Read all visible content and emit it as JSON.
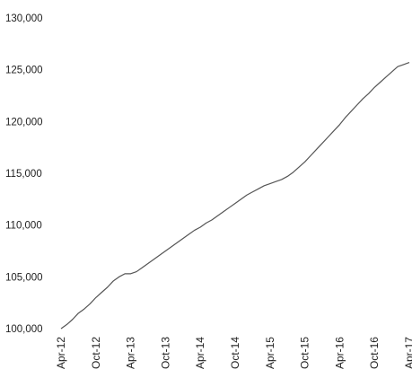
{
  "chart_data": {
    "type": "line",
    "title": "",
    "xlabel": "",
    "ylabel": "",
    "ylim": [
      100000,
      130000
    ],
    "yticks": [
      100000,
      105000,
      110000,
      115000,
      120000,
      125000,
      130000
    ],
    "ytick_labels": [
      "100,000",
      "105,000",
      "110,000",
      "115,000",
      "120,000",
      "125,000",
      "130,000"
    ],
    "xtick_labels": [
      "Apr-12",
      "Oct-12",
      "Apr-13",
      "Oct-13",
      "Apr-14",
      "Oct-14",
      "Apr-15",
      "Oct-15",
      "Apr-16",
      "Oct-16",
      "Apr-17"
    ],
    "grid": false,
    "legend": "none",
    "line_color": "#555555",
    "series": [
      {
        "x": [
          "Apr-12",
          "May-12",
          "Jun-12",
          "Jul-12",
          "Aug-12",
          "Sep-12",
          "Oct-12",
          "Nov-12",
          "Dec-12",
          "Jan-13",
          "Feb-13",
          "Mar-13",
          "Apr-13",
          "May-13",
          "Jun-13",
          "Jul-13",
          "Aug-13",
          "Sep-13",
          "Oct-13",
          "Nov-13",
          "Dec-13",
          "Jan-14",
          "Feb-14",
          "Mar-14",
          "Apr-14",
          "May-14",
          "Jun-14",
          "Jul-14",
          "Aug-14",
          "Sep-14",
          "Oct-14",
          "Nov-14",
          "Dec-14",
          "Jan-15",
          "Feb-15",
          "Mar-15",
          "Apr-15",
          "May-15",
          "Jun-15",
          "Jul-15",
          "Aug-15",
          "Sep-15",
          "Oct-15",
          "Nov-15",
          "Dec-15",
          "Jan-16",
          "Feb-16",
          "Mar-16",
          "Apr-16",
          "May-16",
          "Jun-16",
          "Jul-16",
          "Aug-16",
          "Sep-16",
          "Oct-16",
          "Nov-16",
          "Dec-16",
          "Jan-17",
          "Feb-17",
          "Mar-17",
          "Apr-17"
        ],
        "values": [
          100000,
          100400,
          100900,
          101500,
          101900,
          102400,
          103000,
          103500,
          104000,
          104600,
          105000,
          105300,
          105300,
          105500,
          105900,
          106300,
          106700,
          107100,
          107500,
          107900,
          108300,
          108700,
          109100,
          109500,
          109800,
          110200,
          110500,
          110900,
          111300,
          111700,
          112100,
          112500,
          112900,
          113200,
          113500,
          113800,
          114000,
          114200,
          114400,
          114700,
          115100,
          115600,
          116100,
          116700,
          117300,
          117900,
          118500,
          119100,
          119700,
          120400,
          121000,
          121600,
          122200,
          122700,
          123300,
          123800,
          124300,
          124800,
          125300,
          125500,
          125700
        ]
      }
    ]
  }
}
